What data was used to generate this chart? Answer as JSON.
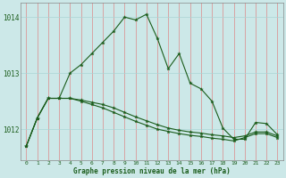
{
  "xlabel": "Graphe pression niveau de la mer (hPa)",
  "bg_color": "#cce8e8",
  "grid_color": "#aad4d4",
  "line_color": "#1a5c1a",
  "x": [
    0,
    1,
    2,
    3,
    4,
    5,
    6,
    7,
    8,
    9,
    10,
    11,
    12,
    13,
    14,
    15,
    16,
    17,
    18,
    19,
    20,
    21,
    22,
    23
  ],
  "line_main": [
    1011.7,
    1012.2,
    1012.55,
    1012.55,
    1013.0,
    1013.15,
    1013.35,
    1013.55,
    1013.75,
    1014.0,
    1013.95,
    1014.05,
    1013.62,
    1013.08,
    1013.35,
    1012.82,
    1012.72,
    1012.5,
    1012.02,
    1011.82,
    1011.82,
    1012.12,
    1012.1,
    1011.9
  ],
  "line_upper_flat": [
    1011.7,
    1012.2,
    1012.55,
    1012.55,
    1012.55,
    1012.52,
    1012.48,
    1012.44,
    1012.38,
    1012.3,
    1012.22,
    1012.15,
    1012.08,
    1012.02,
    1011.98,
    1011.95,
    1011.93,
    1011.9,
    1011.88,
    1011.85,
    1011.88,
    1011.95,
    1011.95,
    1011.88
  ],
  "line_lower_flat": [
    1011.7,
    1012.2,
    1012.55,
    1012.55,
    1012.55,
    1012.5,
    1012.44,
    1012.38,
    1012.3,
    1012.22,
    1012.14,
    1012.07,
    1012.0,
    1011.96,
    1011.92,
    1011.89,
    1011.87,
    1011.84,
    1011.82,
    1011.79,
    1011.85,
    1011.92,
    1011.92,
    1011.85
  ],
  "ylim": [
    1011.45,
    1014.25
  ],
  "yticks": [
    1012,
    1013,
    1014
  ],
  "markersize": 2.8,
  "linewidth": 0.8
}
